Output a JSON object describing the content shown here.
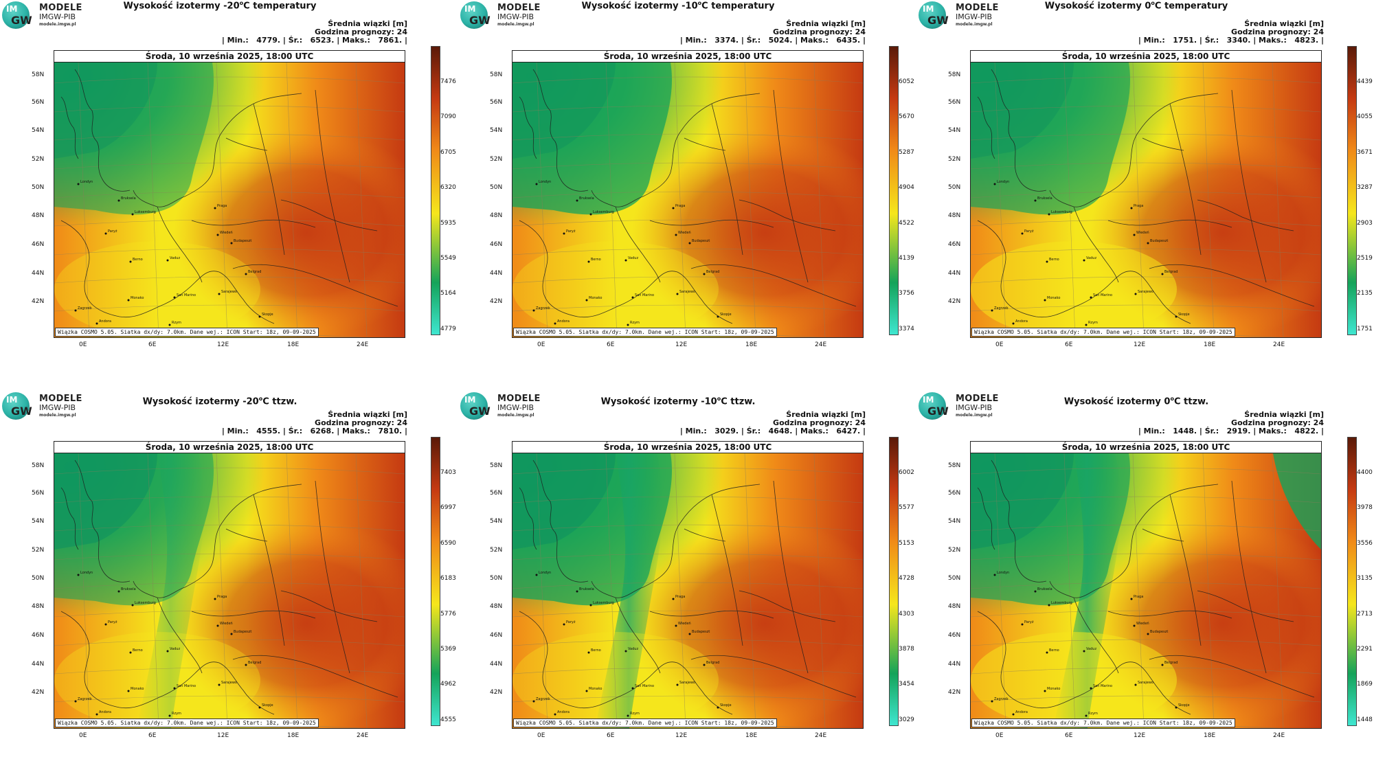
{
  "logo": {
    "badge_top": "IM",
    "badge_bottom": "GW",
    "name": "MODELE",
    "org": "IMGW-PIB",
    "url": "modele.imgw.pl"
  },
  "common": {
    "date": "Środa, 10 września 2025, 18:00 UTC",
    "stats_line1": "Średnia wiązki [m]",
    "stats_line2": "Godzina prognozy: 24",
    "footer": "Wiązka COSMO 5.05. Siatka dx/dy: 7.0km. Dane wej.: ICON Start: 18z, 09-09-2025",
    "lat_labels": [
      "58N",
      "56N",
      "54N",
      "52N",
      "50N",
      "48N",
      "46N",
      "44N",
      "42N"
    ],
    "lon_labels": [
      "0E",
      "6E",
      "12E",
      "18E",
      "24E"
    ]
  },
  "colors": {
    "low": "#3fe6d0",
    "green": "#15a35a",
    "yellow": "#f5e61c",
    "orange": "#f08a18",
    "red": "#c53a12",
    "dark": "#5a1a08"
  },
  "cities": [
    "Londyn",
    "Bruksela",
    "Paryż",
    "Luksemburg",
    "Praga",
    "Wiedeń",
    "Budapeszt",
    "Berno",
    "Vaduz",
    "Zagrzeb",
    "Belgrad",
    "Monako",
    "San Marino",
    "Sarajewo",
    "Andora",
    "Skopje",
    "Rzym"
  ],
  "panels": [
    {
      "title_pre": "Wysokość izotermy -20",
      "title_sup": "o",
      "title_post": "C temperatury",
      "stats": "| Min.:   4779. | Śr.:   6523. | Maks.:   7861. |",
      "cbar": [
        "7476",
        "7090",
        "6705",
        "6320",
        "5935",
        "5549",
        "5164",
        "4779"
      ]
    },
    {
      "title_pre": "Wysokość izotermy -10",
      "title_sup": "o",
      "title_post": "C temperatury",
      "stats": "| Min.:   3374. | Śr.:   5024. | Maks.:   6435. |",
      "cbar": [
        "6052",
        "5670",
        "5287",
        "4904",
        "4522",
        "4139",
        "3756",
        "3374"
      ]
    },
    {
      "title_pre": "Wysokość izotermy 0",
      "title_sup": "o",
      "title_post": "C temperatury",
      "stats": "| Min.:   1751. | Śr.:   3340. | Maks.:   4823. |",
      "cbar": [
        "4439",
        "4055",
        "3671",
        "3287",
        "2903",
        "2519",
        "2135",
        "1751"
      ]
    },
    {
      "title_pre": "Wysokość izotermy -20",
      "title_sup": "o",
      "title_post": "C ttzw.",
      "stats": "| Min.:   4555. | Śr.:   6268. | Maks.:   7810. |",
      "cbar": [
        "7403",
        "6997",
        "6590",
        "6183",
        "5776",
        "5369",
        "4962",
        "4555"
      ]
    },
    {
      "title_pre": "Wysokość izotermy -10",
      "title_sup": "o",
      "title_post": "C ttzw.",
      "stats": "| Min.:   3029. | Śr.:   4648. | Maks.:   6427. |",
      "cbar": [
        "6002",
        "5577",
        "5153",
        "4728",
        "4303",
        "3878",
        "3454",
        "3029"
      ]
    },
    {
      "title_pre": "Wysokość izotermy 0",
      "title_sup": "o",
      "title_post": "C ttzw.",
      "stats": "| Min.:   1448. | Śr.:   2919. | Maks.:   4822. |",
      "cbar": [
        "4400",
        "3978",
        "3556",
        "3135",
        "2713",
        "2291",
        "1869",
        "1448"
      ]
    }
  ]
}
